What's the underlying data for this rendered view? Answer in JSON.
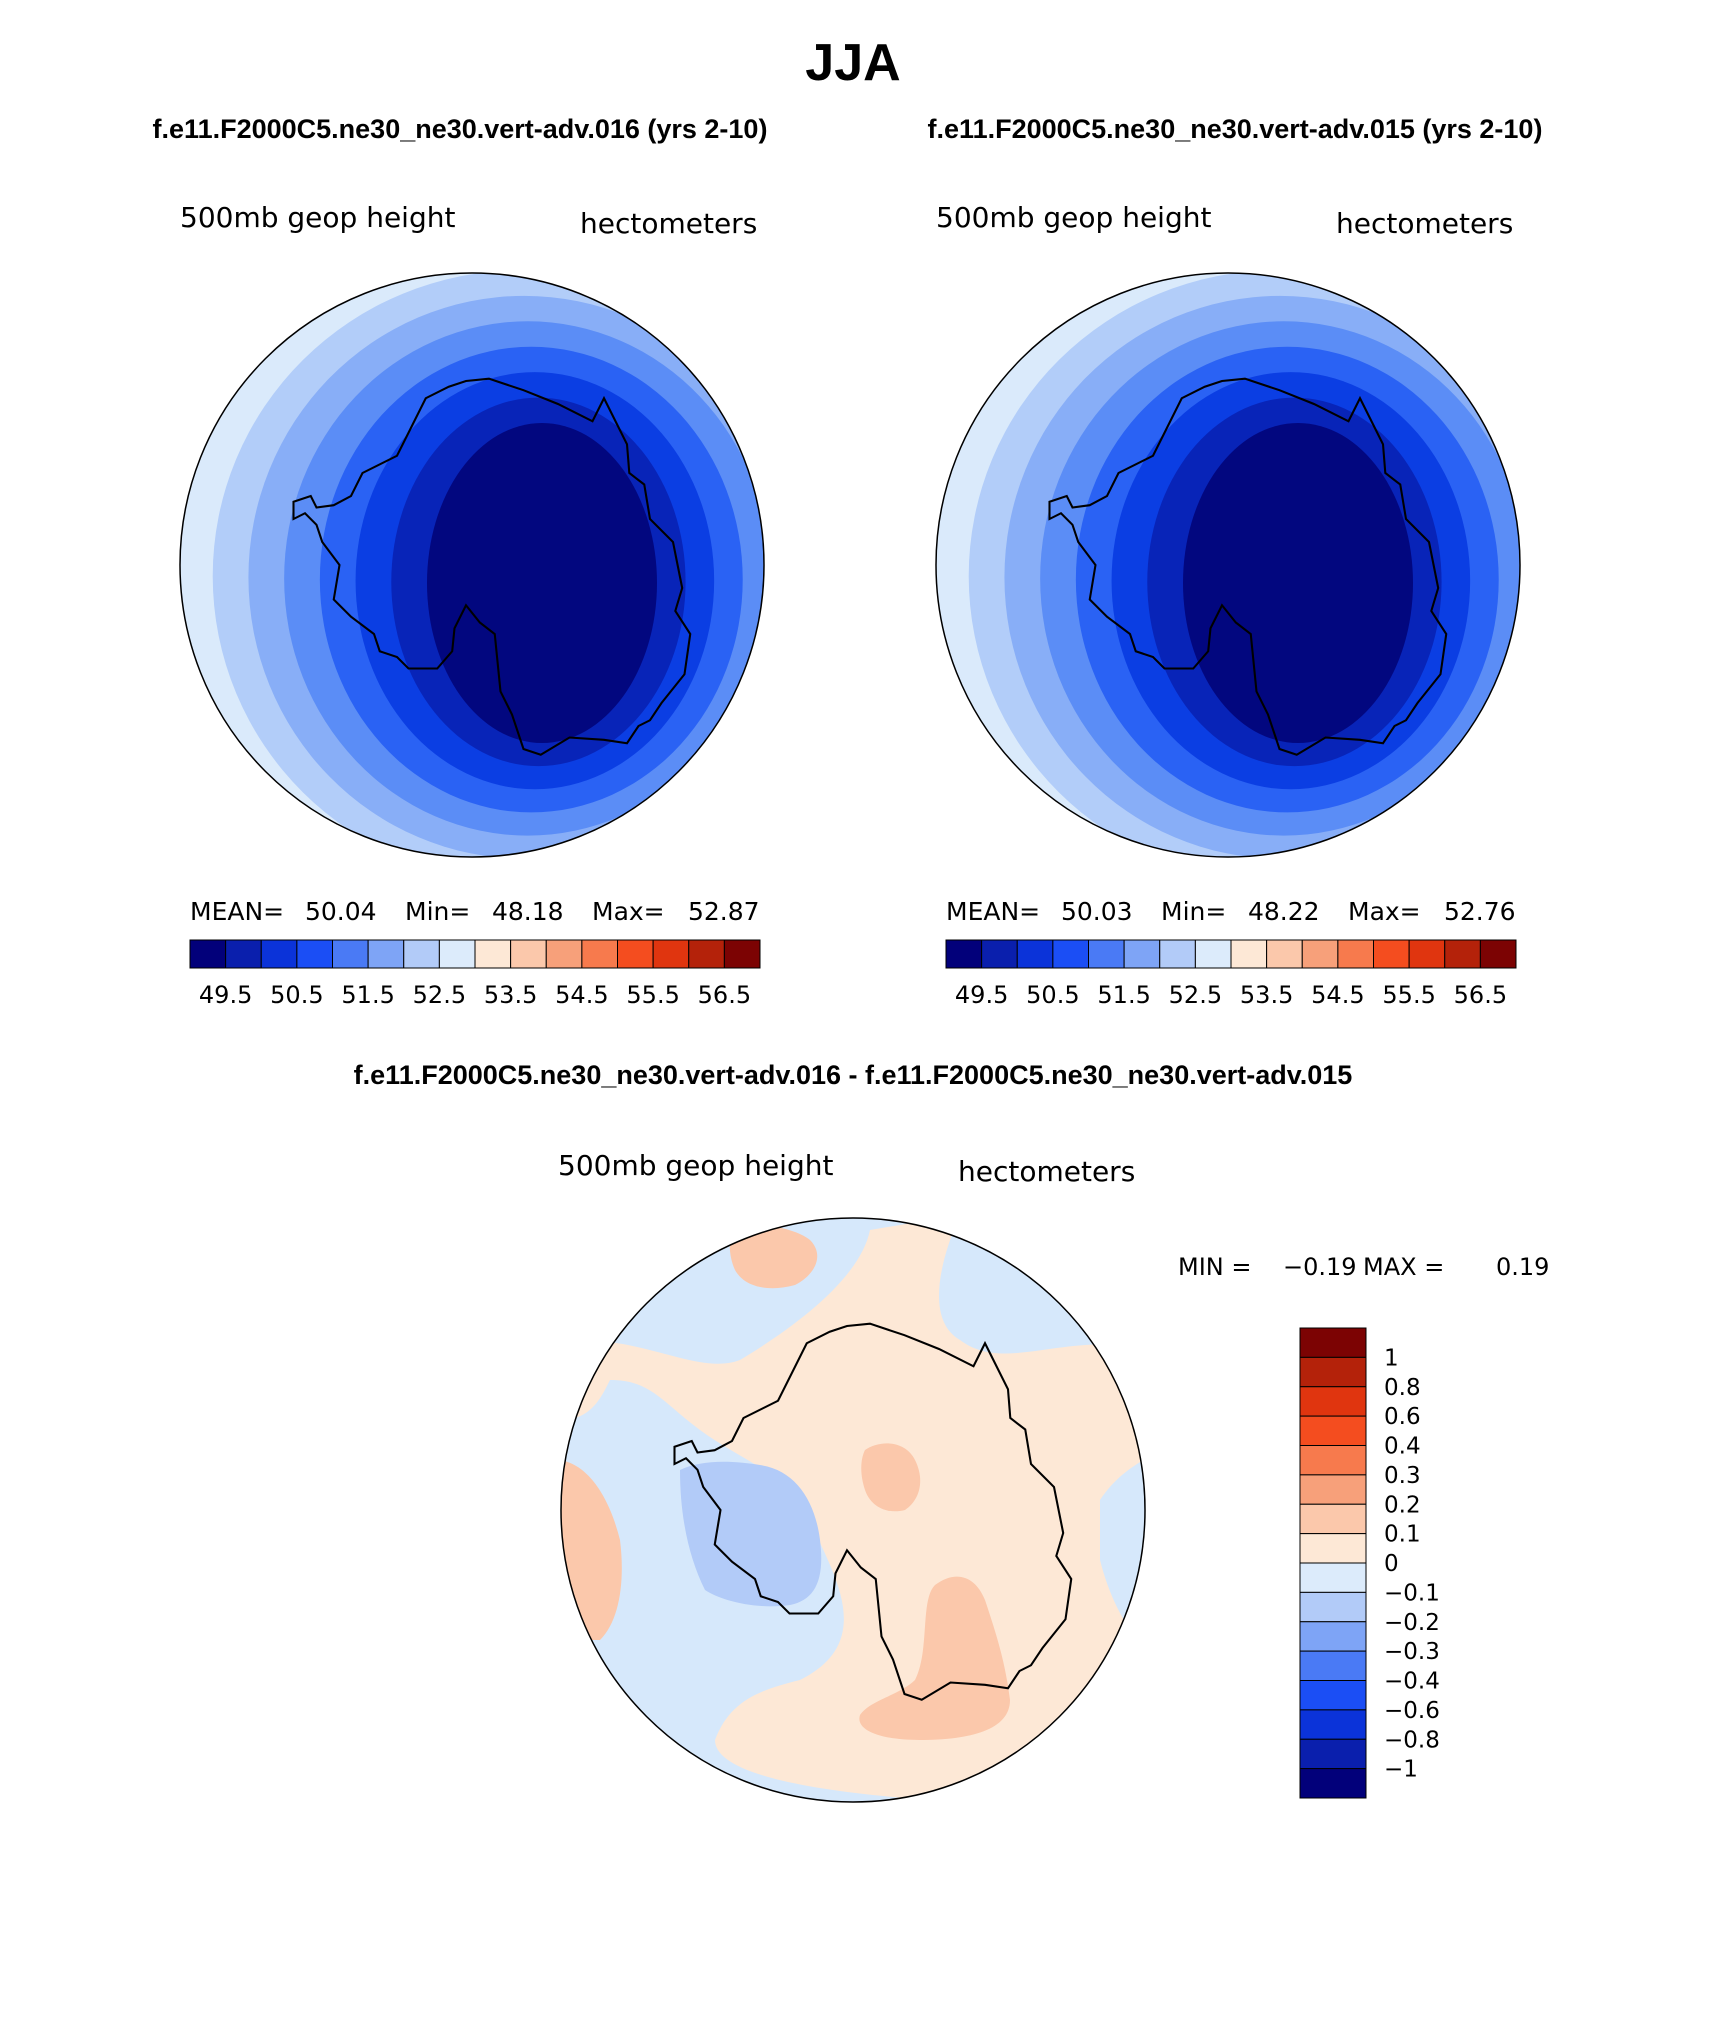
{
  "season": "JJA",
  "panels": [
    {
      "case_label": "f.e11.F2000C5.ne30_ne30.vert-adv.016 (yrs 2-10)",
      "variable": "500mb geop height",
      "units": "hectometers",
      "mean_label": "MEAN=",
      "mean": "50.04",
      "min_label": "Min=",
      "min": "48.18",
      "max_label": "Max=",
      "max": "52.87",
      "fill_order": [
        "#daeafb",
        "#b2cdf9",
        "#88aef7",
        "#5b8df6",
        "#2a62f4",
        "#0b3ee3",
        "#0824b8",
        "#02077f"
      ]
    },
    {
      "case_label": "f.e11.F2000C5.ne30_ne30.vert-adv.015 (yrs 2-10)",
      "variable": "500mb geop height",
      "units": "hectometers",
      "mean_label": "MEAN=",
      "mean": "50.03",
      "min_label": "Min=",
      "min": "48.22",
      "max_label": "Max=",
      "max": "52.76",
      "fill_order": [
        "#daeafb",
        "#b2cdf9",
        "#88aef7",
        "#5b8df6",
        "#2a62f4",
        "#0b3ee3",
        "#0824b8",
        "#02077f"
      ]
    }
  ],
  "abs_colorbar": {
    "colors": [
      "#02007a",
      "#0a1fad",
      "#0b33d9",
      "#1b4ef5",
      "#4a7af5",
      "#7ea4f6",
      "#b2cbf8",
      "#dcebfb",
      "#fde8d6",
      "#fbc8ab",
      "#f7a07a",
      "#f77a4d",
      "#f44d1f",
      "#e0350f",
      "#b4220a",
      "#7c0303"
    ],
    "tick_labels": [
      "49.5",
      "50.5",
      "51.5",
      "52.5",
      "53.5",
      "54.5",
      "55.5",
      "56.5"
    ]
  },
  "diff_panel": {
    "title": "f.e11.F2000C5.ne30_ne30.vert-adv.016 - f.e11.F2000C5.ne30_ne30.vert-adv.015",
    "variable": "500mb geop height",
    "units": "hectometers",
    "min_label": "MIN =",
    "min": "−0.19",
    "max_label": "MAX =",
    "max": "0.19",
    "background_color": "#fde8d6",
    "colors": {
      "neg_0_0.1": "#d6e8fb",
      "neg_0.1_0.2": "#b2cbf8",
      "pos_0_0.1": "#fde8d6",
      "pos_0.1_0.2": "#fbc8ab"
    }
  },
  "diff_colorbar": {
    "colors_top_to_bottom": [
      "#7c0303",
      "#b4220a",
      "#e0350f",
      "#f44d1f",
      "#f77a4d",
      "#f7a07a",
      "#fbc8ab",
      "#fde8d6",
      "#dcebfb",
      "#b2cbf8",
      "#7ea4f6",
      "#4a7af5",
      "#1b4ef5",
      "#0b33d9",
      "#0a1fad",
      "#02007a"
    ],
    "tick_labels_top_to_bottom": [
      "1",
      "0.8",
      "0.6",
      "0.4",
      "0.3",
      "0.2",
      "0.1",
      "0",
      "−0.1",
      "−0.2",
      "−0.3",
      "−0.4",
      "−0.6",
      "−0.8",
      "−1"
    ]
  }
}
